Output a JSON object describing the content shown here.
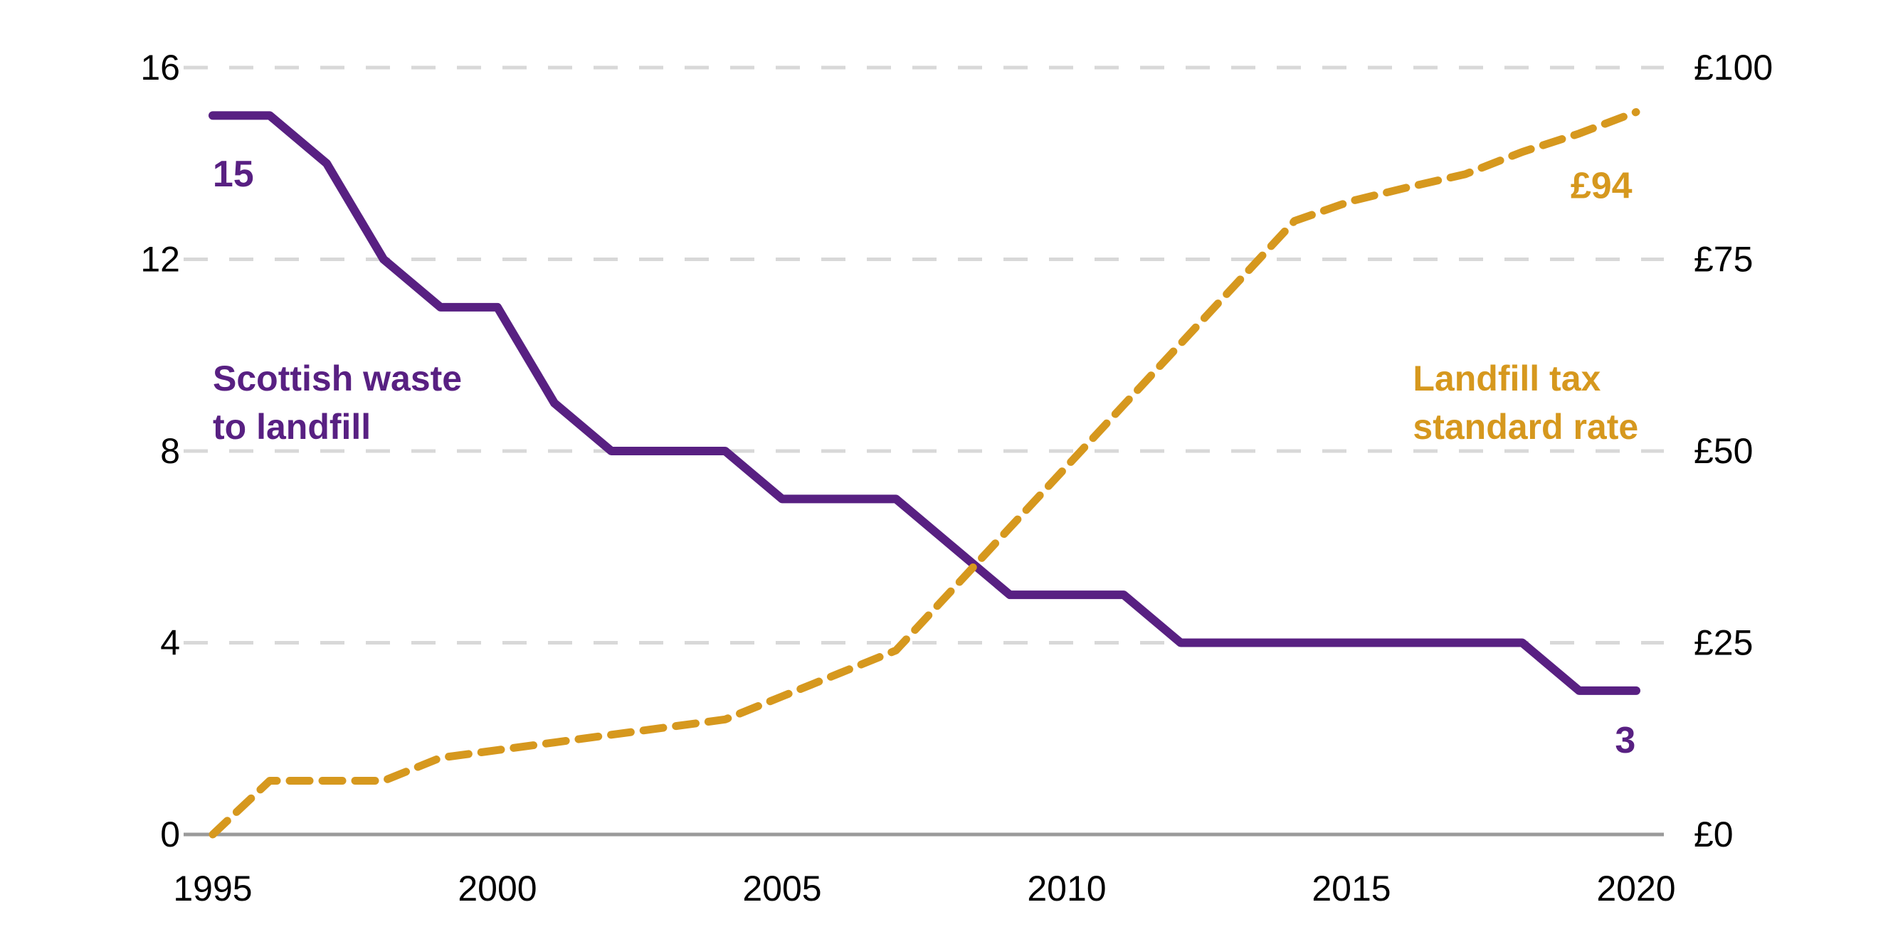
{
  "figure": {
    "background": "#ffffff",
    "text_color": "#000000",
    "grid_color": "#d8d8d8",
    "baseline_color": "#9a9a9a"
  },
  "chart_data": {
    "type": "line",
    "title": "",
    "x": [
      1995,
      1996,
      1997,
      1998,
      1999,
      2000,
      2001,
      2002,
      2003,
      2004,
      2005,
      2006,
      2007,
      2008,
      2009,
      2010,
      2011,
      2012,
      2013,
      2014,
      2015,
      2016,
      2017,
      2018,
      2019,
      2020
    ],
    "x_axis": {
      "range": [
        1995,
        2020
      ],
      "tick_values": [
        1995,
        2000,
        2005,
        2010,
        2015,
        2020
      ],
      "tick_labels": [
        "1995",
        "2000",
        "2005",
        "2010",
        "2015",
        "2020"
      ]
    },
    "left_axis": {
      "range": [
        0,
        16
      ],
      "tick_values": [
        0,
        4,
        8,
        12,
        16
      ],
      "tick_labels": [
        "0",
        "4",
        "8",
        "12",
        "16"
      ]
    },
    "right_axis": {
      "range": [
        0,
        100
      ],
      "tick_values": [
        0,
        25,
        50,
        75,
        100
      ],
      "tick_labels": [
        "£0",
        "£25",
        "£50",
        "£75",
        "£100"
      ]
    },
    "grid": "horizontal-dashed",
    "legend_position": "inline-annotations",
    "series": [
      {
        "id": "waste",
        "name": "Scottish waste to landfill",
        "axis": "left",
        "color": "#582082",
        "line_style": "solid",
        "values": [
          15,
          15,
          14,
          12,
          11,
          11,
          9,
          8,
          8,
          8,
          7,
          7,
          7,
          6,
          5,
          5,
          5,
          4,
          4,
          4,
          4,
          4,
          4,
          4,
          3,
          3
        ]
      },
      {
        "id": "tax",
        "name": "Landfill tax standard rate",
        "axis": "right",
        "color": "#d6981e",
        "line_style": "dashed",
        "values": [
          0,
          7,
          7,
          7,
          10,
          11,
          12,
          13,
          14,
          15,
          18,
          21,
          24,
          32,
          40,
          48,
          56,
          64,
          72,
          80,
          82.6,
          84.4,
          86.1,
          89,
          91.4,
          94.2
        ]
      }
    ],
    "annotations": [
      {
        "id": "waste-start-label",
        "text": "15",
        "series": "waste",
        "axis": "left",
        "x": 1995.36,
        "y": 13.52,
        "anchor": "middle"
      },
      {
        "id": "waste-end-label",
        "text": "3",
        "series": "waste",
        "axis": "left",
        "x": 2019.81,
        "y": 1.71,
        "anchor": "middle"
      },
      {
        "id": "tax-end-label",
        "text": "£94",
        "series": "tax",
        "axis": "right",
        "x": 2019.39,
        "y": 83.0,
        "anchor": "middle"
      },
      {
        "id": "waste-series-label",
        "lines": [
          "Scottish waste",
          "to landfill"
        ],
        "series": "waste",
        "axis": "left",
        "x": 1995.0,
        "y": 9.26,
        "anchor": "start"
      },
      {
        "id": "tax-series-label",
        "lines": [
          "Landfill tax",
          "standard rate"
        ],
        "series": "tax",
        "axis": "left",
        "x": 2016.08,
        "y": 9.26,
        "anchor": "start"
      }
    ]
  }
}
